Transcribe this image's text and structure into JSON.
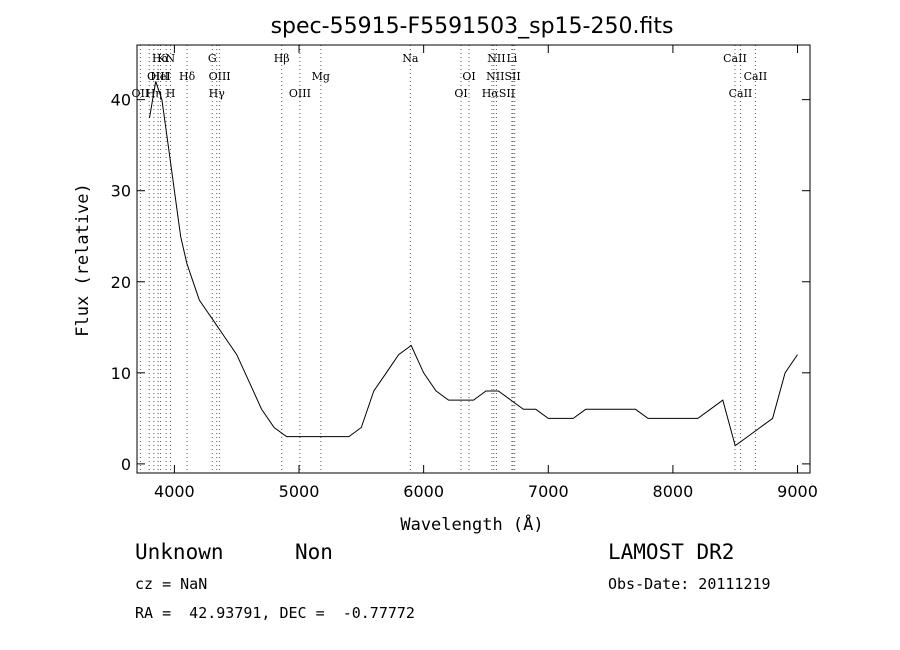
{
  "chart_data": {
    "type": "line",
    "title": "spec-55915-F5591503_sp15-250.fits",
    "xlabel": "Wavelength (Å)",
    "ylabel": "Flux (relative)",
    "xlim": [
      3700,
      9100
    ],
    "ylim": [
      -1,
      46
    ],
    "xticks": [
      4000,
      5000,
      6000,
      7000,
      8000,
      9000
    ],
    "yticks": [
      0,
      10,
      20,
      30,
      40
    ],
    "grid": false,
    "line_color": "#000000",
    "marker_color": "#555555",
    "series": [
      {
        "x": [
          3800,
          3850,
          3900,
          3950,
          4000,
          4050,
          4100,
          4150,
          4200,
          4250,
          4300,
          4350,
          4400,
          4450,
          4500,
          4600,
          4700,
          4800,
          4900,
          5000,
          5100,
          5200,
          5300,
          5400,
          5500,
          5600,
          5700,
          5800,
          5900,
          6000,
          6100,
          6200,
          6300,
          6400,
          6500,
          6600,
          6700,
          6800,
          6900,
          7000,
          7100,
          7200,
          7300,
          7400,
          7500,
          7600,
          7700,
          7800,
          7900,
          8000,
          8100,
          8200,
          8300,
          8400,
          8500,
          8600,
          8700,
          8800,
          8900,
          9000
        ],
        "y": [
          38,
          42,
          40,
          35,
          30,
          25,
          22,
          20,
          18,
          17,
          16,
          15,
          14,
          13,
          12,
          9,
          6,
          4,
          3,
          3,
          3,
          3,
          3,
          3,
          4,
          8,
          10,
          12,
          13,
          10,
          8,
          7,
          7,
          7,
          8,
          8,
          7,
          6,
          6,
          5,
          5,
          5,
          6,
          6,
          6,
          6,
          6,
          5,
          5,
          5,
          5,
          5,
          6,
          7,
          2,
          3,
          4,
          5,
          10,
          12
        ]
      }
    ],
    "line_labels": [
      {
        "text": "Hα",
        "x": 3889,
        "row": 0
      },
      {
        "text": "OIII",
        "x": 3869,
        "row": 1
      },
      {
        "text": "OII",
        "x": 3727,
        "row": 2
      },
      {
        "text": "HeI",
        "x": 3889,
        "row": 1
      },
      {
        "text": "Hη",
        "x": 3835,
        "row": 2
      },
      {
        "text": "KN",
        "x": 3934,
        "row": 0
      },
      {
        "text": "H",
        "x": 3969,
        "row": 2
      },
      {
        "text": "Hδ",
        "x": 4102,
        "row": 1
      },
      {
        "text": "G",
        "x": 4304,
        "row": 0
      },
      {
        "text": "OIII",
        "x": 4363,
        "row": 1
      },
      {
        "text": "Hγ",
        "x": 4340,
        "row": 2
      },
      {
        "text": "Hβ",
        "x": 4861,
        "row": 0
      },
      {
        "text": "OIII",
        "x": 5007,
        "row": 2
      },
      {
        "text": "Mg",
        "x": 5175,
        "row": 1
      },
      {
        "text": "Na",
        "x": 5893,
        "row": 0
      },
      {
        "text": "OI",
        "x": 6364,
        "row": 1
      },
      {
        "text": "OI",
        "x": 6300,
        "row": 2
      },
      {
        "text": "NII",
        "x": 6584,
        "row": 0
      },
      {
        "text": "Li",
        "x": 6708,
        "row": 0
      },
      {
        "text": "NIISII",
        "x": 6640,
        "row": 1
      },
      {
        "text": "HαSII",
        "x": 6600,
        "row": 2
      },
      {
        "text": "CaII",
        "x": 8498,
        "row": 0
      },
      {
        "text": "CaII",
        "x": 8662,
        "row": 1
      },
      {
        "text": "CaII",
        "x": 8542,
        "row": 2
      }
    ],
    "line_markers": [
      3727,
      3798,
      3835,
      3869,
      3889,
      3934,
      3969,
      4102,
      4304,
      4340,
      4363,
      4861,
      5007,
      5175,
      5893,
      6300,
      6364,
      6548,
      6563,
      6584,
      6708,
      6717,
      6731,
      8498,
      8542,
      8662
    ]
  },
  "info": {
    "class": "Unknown",
    "subclass": "Non",
    "cz": "cz = NaN",
    "coords": "RA =  42.93791, DEC =  -0.77772",
    "survey": "LAMOST DR2",
    "obsdate": "Obs-Date: 20111219"
  }
}
